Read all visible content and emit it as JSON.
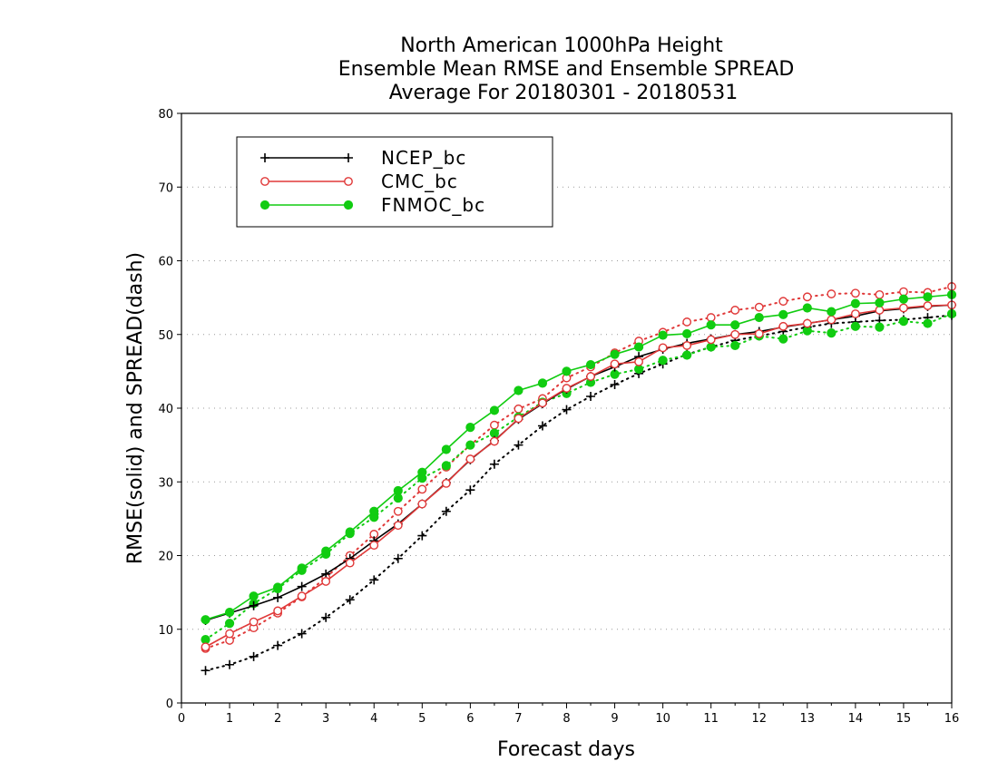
{
  "chart_data": {
    "type": "line",
    "title": [
      "North American 1000hPa Height",
      "Ensemble Mean RMSE and Ensemble SPREAD",
      "Average For 20180301 - 20180531"
    ],
    "xlabel": "Forecast days",
    "ylabel": "RMSE(solid) and SPREAD(dash)",
    "xlim": [
      0,
      16
    ],
    "ylim": [
      0,
      80
    ],
    "xticks": [
      "0",
      "1",
      "2",
      "3",
      "4",
      "5",
      "6",
      "7",
      "8",
      "9",
      "10",
      "11",
      "12",
      "13",
      "14",
      "15",
      "16"
    ],
    "yticks": [
      "0",
      "10",
      "20",
      "30",
      "40",
      "50",
      "60",
      "70",
      "80"
    ],
    "grid": true,
    "legend_position": "top-left",
    "x": [
      0.5,
      1,
      1.5,
      2,
      2.5,
      3,
      3.5,
      4,
      4.5,
      5,
      5.5,
      6,
      6.5,
      7,
      7.5,
      8,
      8.5,
      9,
      9.5,
      10,
      10.5,
      11,
      11.5,
      12,
      12.5,
      13,
      13.5,
      14,
      14.5,
      15,
      15.5,
      16
    ],
    "series": [
      {
        "name": "NCEP_bc",
        "color": "#000000",
        "marker": "plus",
        "rmse": [
          11.2,
          12.2,
          13.2,
          14.3,
          15.8,
          17.5,
          19.6,
          22.0,
          24.3,
          27.0,
          29.9,
          33.0,
          35.6,
          38.5,
          40.6,
          42.6,
          44.3,
          45.6,
          47.0,
          48.0,
          48.8,
          49.4,
          50.0,
          50.4,
          51.0,
          51.5,
          52.0,
          52.5,
          53.2,
          53.5,
          53.8,
          54.0
        ],
        "spread": [
          4.4,
          5.2,
          6.3,
          7.8,
          9.4,
          11.6,
          14.0,
          16.7,
          19.6,
          22.7,
          26.0,
          28.9,
          32.4,
          35.0,
          37.6,
          39.8,
          41.6,
          43.2,
          44.7,
          46.0,
          47.3,
          48.3,
          49.2,
          49.8,
          50.4,
          51.0,
          51.5,
          51.7,
          51.9,
          52.0,
          52.3,
          52.6
        ]
      },
      {
        "name": "CMC_bc",
        "color": "#e03838",
        "marker": "open-circle",
        "rmse": [
          7.6,
          9.4,
          11.0,
          12.5,
          14.5,
          16.5,
          19.0,
          21.4,
          24.1,
          27.0,
          29.8,
          33.1,
          35.5,
          38.6,
          40.7,
          42.7,
          44.3,
          46.0,
          46.3,
          48.2,
          48.5,
          49.3,
          50.0,
          50.1,
          51.1,
          51.5,
          52.0,
          52.8,
          53.3,
          53.6,
          53.9,
          54.0
        ],
        "spread": [
          7.4,
          8.5,
          10.2,
          12.2,
          14.4,
          17.0,
          20.0,
          22.9,
          26.0,
          29.0,
          32.0,
          35.0,
          37.7,
          39.9,
          41.3,
          44.1,
          45.6,
          47.5,
          49.1,
          50.3,
          51.7,
          52.3,
          53.3,
          53.7,
          54.5,
          55.1,
          55.5,
          55.6,
          55.4,
          55.8,
          55.7,
          56.5
        ]
      },
      {
        "name": "FNMOC_bc",
        "color": "#11cc11",
        "marker": "filled-circle",
        "rmse": [
          11.3,
          12.3,
          14.5,
          15.7,
          18.3,
          20.6,
          23.2,
          26.0,
          28.8,
          31.3,
          34.4,
          37.4,
          39.7,
          42.4,
          43.4,
          45.0,
          45.9,
          47.3,
          48.3,
          49.9,
          50.1,
          51.3,
          51.3,
          52.3,
          52.7,
          53.6,
          53.1,
          54.2,
          54.3,
          54.8,
          55.1,
          55.4
        ],
        "spread": [
          8.6,
          10.8,
          13.5,
          15.5,
          18.0,
          20.2,
          23.0,
          25.2,
          27.8,
          30.5,
          32.2,
          35.0,
          36.6,
          38.8,
          40.8,
          42.0,
          43.5,
          44.6,
          45.3,
          46.5,
          47.2,
          48.3,
          48.5,
          49.8,
          49.4,
          50.5,
          50.2,
          51.1,
          51.0,
          51.8,
          51.5,
          52.8
        ]
      }
    ]
  }
}
